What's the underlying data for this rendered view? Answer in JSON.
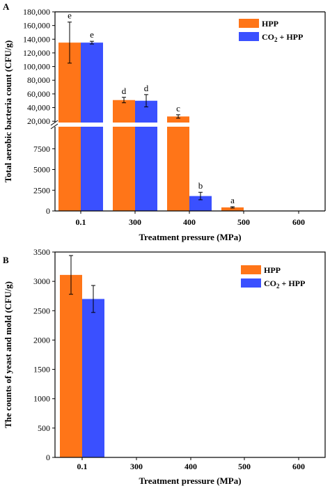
{
  "colors": {
    "hpp": "#ff7518",
    "co2_hpp": "#3a50ff",
    "axis": "#000000"
  },
  "chart_data": [
    {
      "panel": "A",
      "type": "bar",
      "categories": [
        "0.1",
        "300",
        "400",
        "500",
        "600"
      ],
      "xlabel": "Treatment pressure (MPa)",
      "ylabel": "Total aerobic bacteria count (CFU/g)",
      "y_axis_break": true,
      "ylim_lower": [
        0,
        10000
      ],
      "ylim_upper": [
        10000,
        180000
      ],
      "yticks_lower": [
        "0",
        "2500",
        "5000",
        "7500"
      ],
      "yticks_upper": [
        "20,000",
        "40,000",
        "60,000",
        "80,000",
        "100,000",
        "120,000",
        "140,000",
        "160,000",
        "180,000"
      ],
      "legend_position": "top-right",
      "series": [
        {
          "name": "HPP",
          "values": [
            135000,
            51000,
            27000,
            430,
            0
          ],
          "errors": [
            30000,
            4000,
            2500,
            80,
            0
          ]
        },
        {
          "name": "CO2 + HPP",
          "values": [
            135000,
            50000,
            1800,
            0,
            0
          ],
          "errors": [
            2000,
            9000,
            450,
            0,
            0
          ]
        }
      ],
      "annotations": [
        {
          "series": 0,
          "index": 0,
          "text": "e"
        },
        {
          "series": 1,
          "index": 0,
          "text": "e"
        },
        {
          "series": 0,
          "index": 1,
          "text": "d"
        },
        {
          "series": 1,
          "index": 1,
          "text": "d"
        },
        {
          "series": 0,
          "index": 2,
          "text": "c"
        },
        {
          "series": 1,
          "index": 2,
          "text": "b"
        },
        {
          "series": 0,
          "index": 3,
          "text": "a"
        }
      ]
    },
    {
      "panel": "B",
      "type": "bar",
      "categories": [
        "0.1",
        "300",
        "400",
        "500",
        "600"
      ],
      "xlabel": "Treatment pressure (MPa)",
      "ylabel": "The counts of yeast and mold (CFU/g)",
      "ylim": [
        0,
        3500
      ],
      "yticks": [
        "0",
        "500",
        "1000",
        "1500",
        "2000",
        "2500",
        "3000",
        "3500"
      ],
      "legend_position": "top-right",
      "series": [
        {
          "name": "HPP",
          "values": [
            3110,
            0,
            0,
            0,
            0
          ],
          "errors": [
            330,
            0,
            0,
            0,
            0
          ]
        },
        {
          "name": "CO2 + HPP",
          "values": [
            2700,
            0,
            0,
            0,
            0
          ],
          "errors": [
            230,
            0,
            0,
            0,
            0
          ]
        }
      ],
      "annotations": []
    }
  ]
}
